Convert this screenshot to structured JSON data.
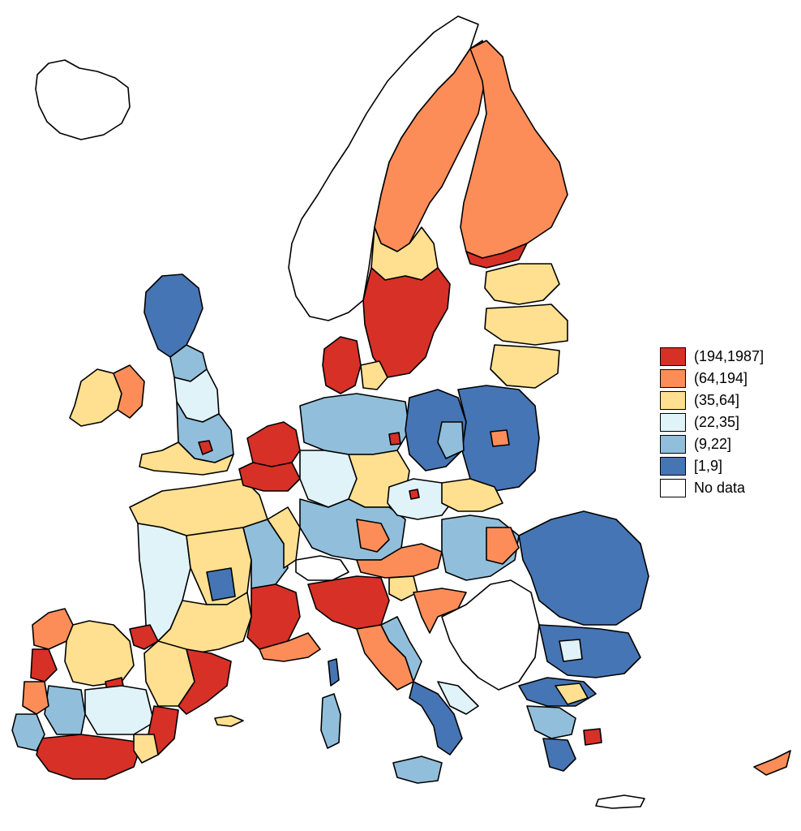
{
  "legend": {
    "items": [
      {
        "label": "(194,1987]",
        "color": "#d73027"
      },
      {
        "label": "(64,194]",
        "color": "#fc8d59"
      },
      {
        "label": "(35,64]",
        "color": "#fee090"
      },
      {
        "label": "(22,35]",
        "color": "#e0f3f8"
      },
      {
        "label": "(9,22]",
        "color": "#91bfdb"
      },
      {
        "label": "[1,9]",
        "color": "#4575b4"
      },
      {
        "label": "No data",
        "color": "#ffffff"
      }
    ]
  },
  "map": {
    "projection": "Europe NUTS regions choropleth",
    "region_stroke": "#000000"
  }
}
